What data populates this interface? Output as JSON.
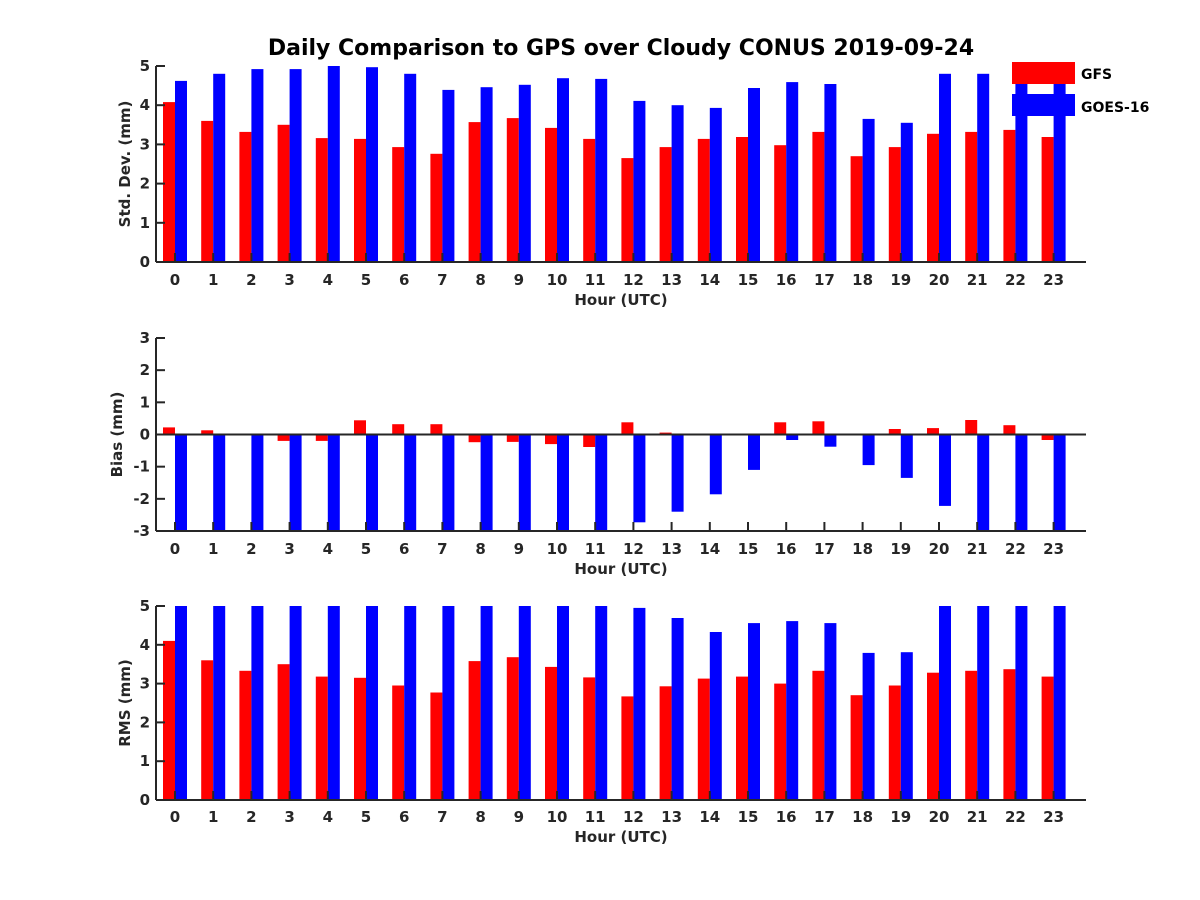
{
  "colors": {
    "gfs": "#ff0000",
    "goes": "#0000ff",
    "axis": "#262626"
  },
  "chart_data": [
    {
      "type": "bar",
      "title": "Daily Comparison to GPS over Cloudy CONUS 2019-09-24",
      "xlabel": "Hour (UTC)",
      "ylabel": "Std. Dev. (mm)",
      "ylim": [
        0,
        5
      ],
      "yticks": [
        "0",
        "1",
        "2",
        "3",
        "4",
        "5"
      ],
      "categories": [
        "0",
        "1",
        "2",
        "3",
        "4",
        "5",
        "6",
        "7",
        "8",
        "9",
        "10",
        "11",
        "12",
        "13",
        "14",
        "15",
        "16",
        "17",
        "18",
        "19",
        "20",
        "21",
        "22",
        "23"
      ],
      "legend": {
        "placement": "top-right",
        "entries": [
          "GFS",
          "GOES-16"
        ]
      },
      "series": [
        {
          "name": "GFS",
          "values": [
            4.08,
            3.6,
            3.32,
            3.5,
            3.16,
            3.14,
            2.93,
            2.76,
            3.57,
            3.67,
            3.42,
            3.14,
            2.65,
            2.93,
            3.14,
            3.19,
            2.98,
            3.32,
            2.7,
            2.93,
            3.27,
            3.32,
            3.37,
            3.19
          ]
        },
        {
          "name": "GOES-16",
          "values": [
            4.62,
            4.8,
            4.92,
            4.92,
            5.0,
            4.97,
            4.8,
            4.39,
            4.46,
            4.52,
            4.69,
            4.67,
            4.11,
            4.0,
            3.93,
            4.44,
            4.59,
            4.54,
            3.65,
            3.55,
            4.8,
            4.8,
            4.95,
            4.7
          ]
        }
      ]
    },
    {
      "type": "bar",
      "title": "",
      "xlabel": "Hour (UTC)",
      "ylabel": "Bias (mm)",
      "ylim": [
        -3,
        3
      ],
      "yticks": [
        "-3",
        "-2",
        "-1",
        "0",
        "1",
        "2",
        "3"
      ],
      "categories": [
        "0",
        "1",
        "2",
        "3",
        "4",
        "5",
        "6",
        "7",
        "8",
        "9",
        "10",
        "11",
        "12",
        "13",
        "14",
        "15",
        "16",
        "17",
        "18",
        "19",
        "20",
        "21",
        "22",
        "23"
      ],
      "series": [
        {
          "name": "GFS",
          "values": [
            0.22,
            0.13,
            0.03,
            -0.2,
            -0.2,
            0.44,
            0.32,
            0.32,
            -0.24,
            -0.23,
            -0.3,
            -0.39,
            0.38,
            0.06,
            0.0,
            0.0,
            0.38,
            0.41,
            -0.03,
            0.17,
            0.2,
            0.45,
            0.29,
            -0.17
          ]
        },
        {
          "name": "GOES-16",
          "values": [
            -3.0,
            -3.0,
            -3.0,
            -3.0,
            -3.0,
            -3.0,
            -3.0,
            -3.0,
            -3.0,
            -3.0,
            -3.0,
            -3.0,
            -2.73,
            -2.4,
            -1.86,
            -1.1,
            -0.17,
            -0.38,
            -0.95,
            -1.35,
            -2.22,
            -3.0,
            -3.0,
            -3.0
          ]
        }
      ]
    },
    {
      "type": "bar",
      "title": "",
      "xlabel": "Hour (UTC)",
      "ylabel": "RMS (mm)",
      "ylim": [
        0,
        5
      ],
      "yticks": [
        "0",
        "1",
        "2",
        "3",
        "4",
        "5"
      ],
      "categories": [
        "0",
        "1",
        "2",
        "3",
        "4",
        "5",
        "6",
        "7",
        "8",
        "9",
        "10",
        "11",
        "12",
        "13",
        "14",
        "15",
        "16",
        "17",
        "18",
        "19",
        "20",
        "21",
        "22",
        "23"
      ],
      "series": [
        {
          "name": "GFS",
          "values": [
            4.1,
            3.6,
            3.33,
            3.5,
            3.18,
            3.15,
            2.95,
            2.77,
            3.58,
            3.68,
            3.43,
            3.16,
            2.67,
            2.93,
            3.13,
            3.18,
            3.0,
            3.33,
            2.7,
            2.95,
            3.28,
            3.33,
            3.37,
            3.18
          ]
        },
        {
          "name": "GOES-16",
          "values": [
            5.0,
            5.0,
            5.0,
            5.0,
            5.0,
            5.0,
            5.0,
            5.0,
            5.0,
            5.0,
            5.0,
            5.0,
            4.95,
            4.69,
            4.33,
            4.56,
            4.61,
            4.56,
            3.79,
            3.81,
            5.0,
            5.0,
            5.0,
            5.0
          ]
        }
      ]
    }
  ]
}
